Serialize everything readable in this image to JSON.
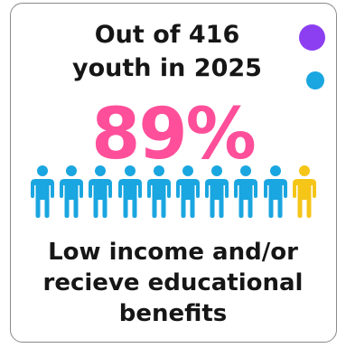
{
  "card": {
    "heading_line1": "Out of 416",
    "heading_line2": "youth in 2025",
    "stat_value": "89%",
    "caption_line1": "Low income and/or",
    "caption_line2": "recieve educational",
    "caption_line3": "benefits"
  },
  "colors": {
    "stat": "#ff4f9a",
    "person_highlight": "#1aa6e0",
    "person_other": "#f5c518",
    "dot_purple": "#8c3ff0",
    "dot_blue": "#1aa6e0"
  },
  "people": {
    "total": 10,
    "highlighted": 9
  }
}
